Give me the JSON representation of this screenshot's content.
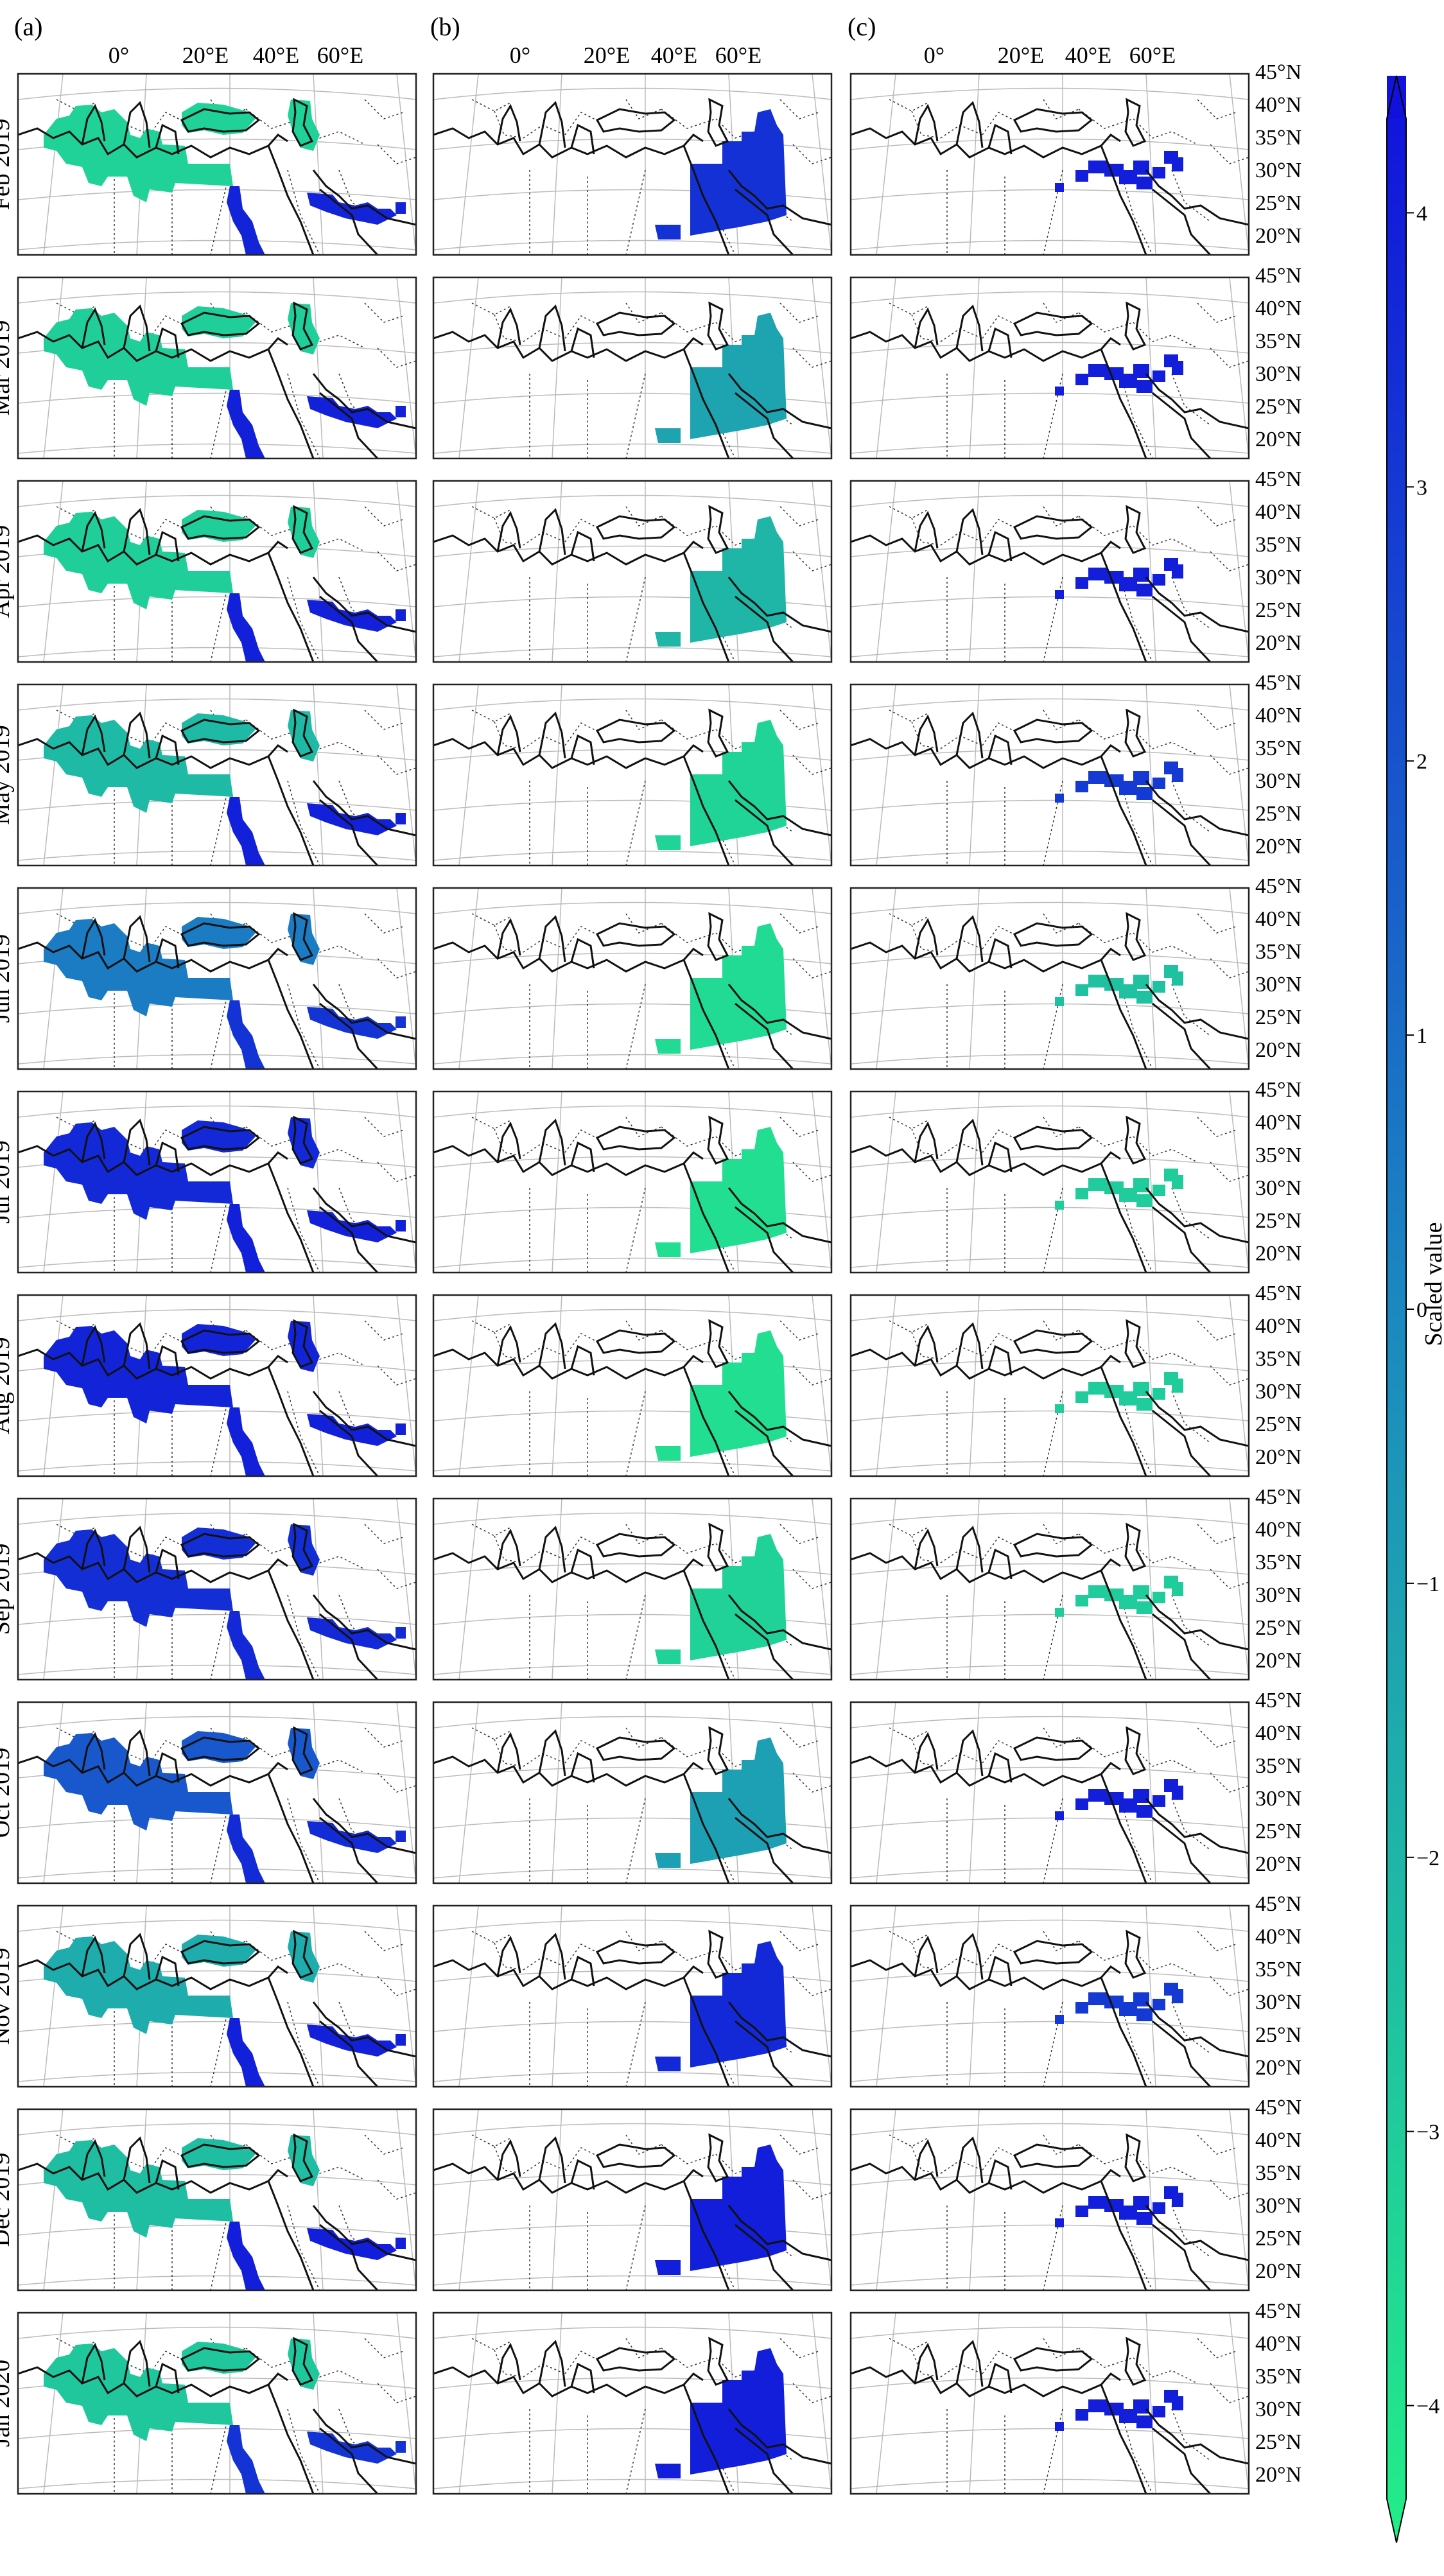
{
  "figure": {
    "panel_labels": [
      "(a)",
      "(b)",
      "(c)"
    ],
    "lon_labels": [
      "0°",
      "20°E",
      "40°E",
      "60°E"
    ],
    "lat_labels": [
      "45°N",
      "40°N",
      "35°N",
      "30°N",
      "25°N",
      "20°N"
    ],
    "row_labels": [
      "Feb 2019",
      "Mar 2019",
      "Apr 2019",
      "May 2019",
      "Jun 2019",
      "Jul 2019",
      "Aug 2019",
      "Sep 2019",
      "Oct 2019",
      "Nov 2019",
      "Dec 2019",
      "Jan 2020"
    ],
    "colorbar": {
      "label": "Scaled value",
      "ticks": [
        "4",
        "3",
        "2",
        "1",
        "0",
        "−1",
        "−2",
        "−3",
        "−4"
      ],
      "range": [
        -4.5,
        4.5
      ],
      "color_low": "#22ee88",
      "color_high": "#1111dd"
    },
    "colors": {
      "frame": "#222222",
      "coast": "#111111",
      "border": "#333333",
      "grid": "#bbbbbb"
    },
    "scaled_values": {
      "a": [
        -3.2,
        -3.1,
        -3.1,
        -2.2,
        0.5,
        3.6,
        3.8,
        3.4,
        1.8,
        -1.6,
        -2.4,
        -2.8
      ],
      "a_south": [
        3.8,
        3.9,
        3.9,
        3.9,
        3.2,
        3.9,
        3.9,
        3.6,
        3.5,
        3.9,
        4.0,
        3.2
      ],
      "b": [
        3.3,
        -1.2,
        -2.0,
        -3.3,
        -3.6,
        -3.8,
        -3.8,
        -3.2,
        -1.0,
        3.6,
        4.0,
        4.0
      ],
      "c": [
        4.0,
        4.0,
        4.0,
        3.0,
        -2.5,
        -3.0,
        -3.0,
        -3.0,
        4.0,
        3.0,
        4.0,
        4.0
      ]
    }
  }
}
